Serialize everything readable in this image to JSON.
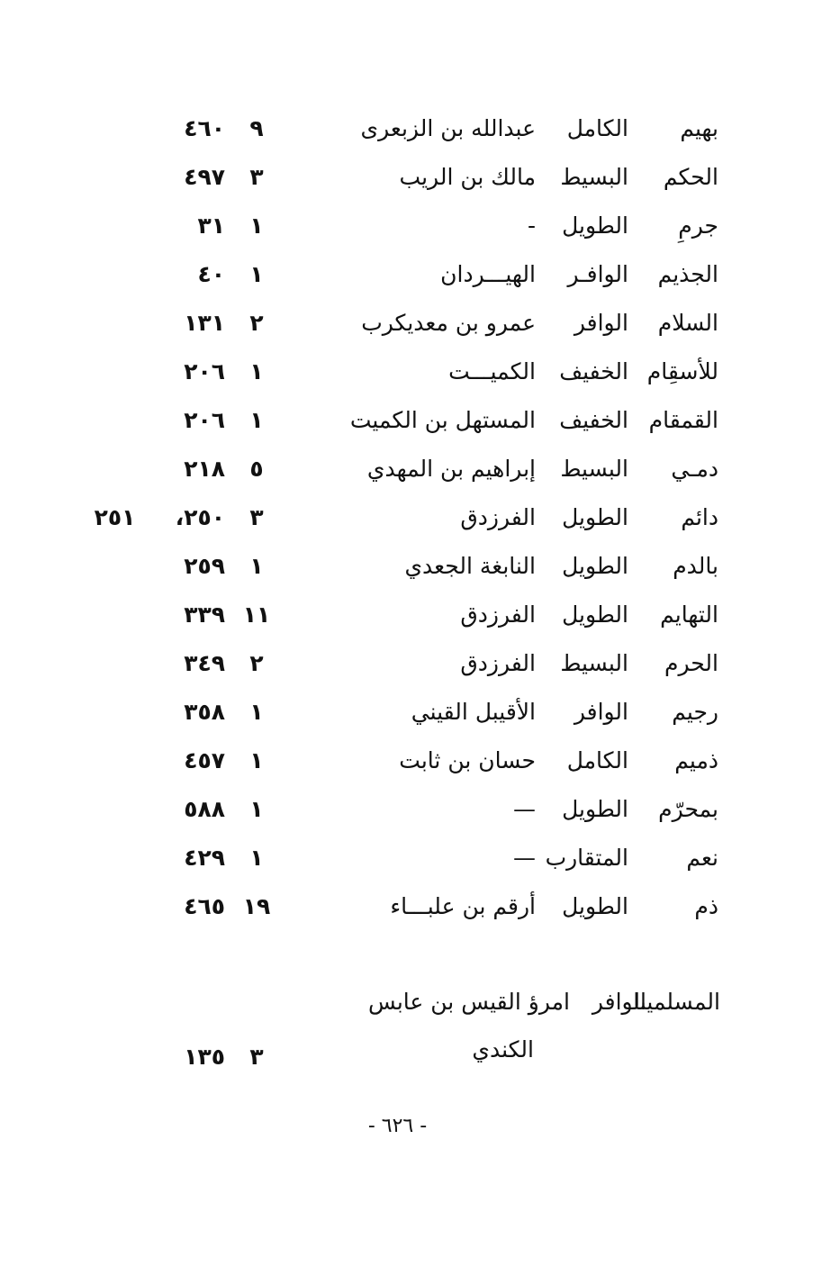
{
  "entries": [
    {
      "rhyme": "بهيم",
      "meter": "الكامل",
      "poet": "عبدالله بن الزبعرى",
      "count": "٩",
      "pages": "٤٦٠",
      "extra": ""
    },
    {
      "rhyme": "الحكم",
      "meter": "البسيط",
      "poet": "مالك بن الريب",
      "count": "٣",
      "pages": "٤٩٧",
      "extra": ""
    },
    {
      "rhyme": "جرمِ",
      "meter": "الطويل",
      "poet": "-",
      "count": "١",
      "pages": "٣١",
      "extra": ""
    },
    {
      "rhyme": "الجذيم",
      "meter": "الوافـر",
      "poet": "الهيـــردان",
      "count": "١",
      "pages": "٤٠",
      "extra": ""
    },
    {
      "rhyme": "السلام",
      "meter": "الوافر",
      "poet": "عمرو بن معديكرب",
      "count": "٢",
      "pages": "١٣١",
      "extra": ""
    },
    {
      "rhyme": "للأسقِام",
      "meter": "الخفيف",
      "poet": "الكميـــت",
      "count": "١",
      "pages": "٢٠٦",
      "extra": ""
    },
    {
      "rhyme": "القمقام",
      "meter": "الخفيف",
      "poet": "المستهل بن الكميت",
      "count": "١",
      "pages": "٢٠٦",
      "extra": ""
    },
    {
      "rhyme": "دمـي",
      "meter": "البسيط",
      "poet": "إبراهيم بن المهدي",
      "count": "٥",
      "pages": "٢١٨",
      "extra": ""
    },
    {
      "rhyme": "دائم",
      "meter": "الطويل",
      "poet": "الفرزدق",
      "count": "٣",
      "pages": "٢٥٠،",
      "extra": "٢٥١"
    },
    {
      "rhyme": "بالدم",
      "meter": "الطويل",
      "poet": "النابغة الجعدي",
      "count": "١",
      "pages": "٢٥٩",
      "extra": ""
    },
    {
      "rhyme": "التهايم",
      "meter": "الطويل",
      "poet": "الفرزدق",
      "count": "١١",
      "pages": "٣٣٩",
      "extra": ""
    },
    {
      "rhyme": "الحرم",
      "meter": "البسيط",
      "poet": "الفرزدق",
      "count": "٢",
      "pages": "٣٤٩",
      "extra": ""
    },
    {
      "rhyme": "رجيم",
      "meter": "الوافر",
      "poet": "الأقيبل القيني",
      "count": "١",
      "pages": "٣٥٨",
      "extra": ""
    },
    {
      "rhyme": "ذميم",
      "meter": "الكامل",
      "poet": "حسان بن ثابت",
      "count": "١",
      "pages": "٤٥٧",
      "extra": ""
    },
    {
      "rhyme": "بمحرّم",
      "meter": "الطويل",
      "poet": "—",
      "count": "١",
      "pages": "٥٨٨",
      "extra": ""
    },
    {
      "rhyme": "نعم",
      "meter": "المتقارب",
      "poet": "—",
      "count": "١",
      "pages": "٤٢٩",
      "extra": ""
    },
    {
      "rhyme": "ذم",
      "meter": "الطويل",
      "poet": "أرقم بن علبـــاء",
      "count": "١٩",
      "pages": "٤٦٥",
      "extra": ""
    }
  ],
  "last_entry": {
    "rhyme": "المسلمينا",
    "meter": "الوافر",
    "poet_line1": "امرؤ القيس بن عابس",
    "poet_line2": "الكندي",
    "count": "٣",
    "pages": "١٣٥"
  },
  "footer": {
    "page_number": "- ٦٢٦ -"
  }
}
